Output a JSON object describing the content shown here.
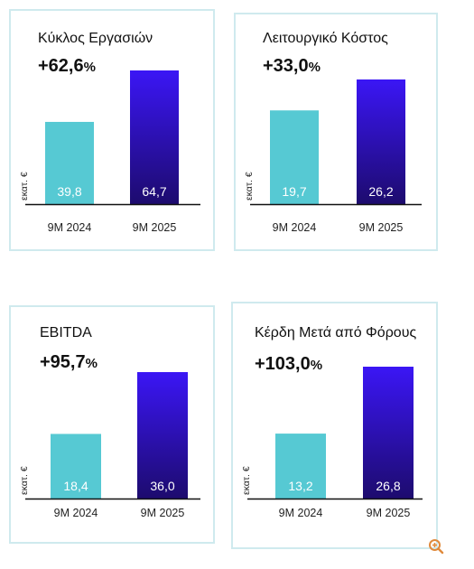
{
  "colors": {
    "bar_2024": "#56c9d3",
    "bar_2025_top": "#3b16f5",
    "bar_2025_bottom": "#1d0b6e",
    "axis": "#111111",
    "border": "#cfeaee"
  },
  "icons": {
    "zoom": "zoom-in-icon"
  },
  "chart_data": [
    {
      "type": "bar",
      "title": "Κύκλος Εργασιών",
      "change": {
        "value": "+62,6",
        "unit": "%"
      },
      "ylabel": "εκατ. €",
      "categories": [
        "9M 2024",
        "9M 2025"
      ],
      "values": [
        39.8,
        64.7
      ],
      "value_labels": [
        "39,8",
        "64,7"
      ],
      "ylim": [
        0,
        70
      ]
    },
    {
      "type": "bar",
      "title": "Λειτουργικό Κόστος",
      "change": {
        "value": "+33,0",
        "unit": "%"
      },
      "ylabel": "εκατ. €",
      "categories": [
        "9M 2024",
        "9M 2025"
      ],
      "values": [
        19.7,
        26.2
      ],
      "value_labels": [
        "19,7",
        "26,2"
      ],
      "ylim": [
        0,
        30
      ]
    },
    {
      "type": "bar",
      "title": "EBITDA",
      "change": {
        "value": "+95,7",
        "unit": "%"
      },
      "ylabel": "εκατ. €",
      "categories": [
        "9M 2024",
        "9M 2025"
      ],
      "values": [
        18.4,
        36.0
      ],
      "value_labels": [
        "18,4",
        "36,0"
      ],
      "ylim": [
        0,
        38
      ]
    },
    {
      "type": "bar",
      "title": "Κέρδη Μετά από Φόρους",
      "change": {
        "value": "+103,0",
        "unit": "%"
      },
      "ylabel": "εκατ. €",
      "categories": [
        "9M 2024",
        "9M 2025"
      ],
      "values": [
        13.2,
        26.8
      ],
      "value_labels": [
        "13,2",
        "26,8"
      ],
      "ylim": [
        0,
        28
      ]
    }
  ]
}
